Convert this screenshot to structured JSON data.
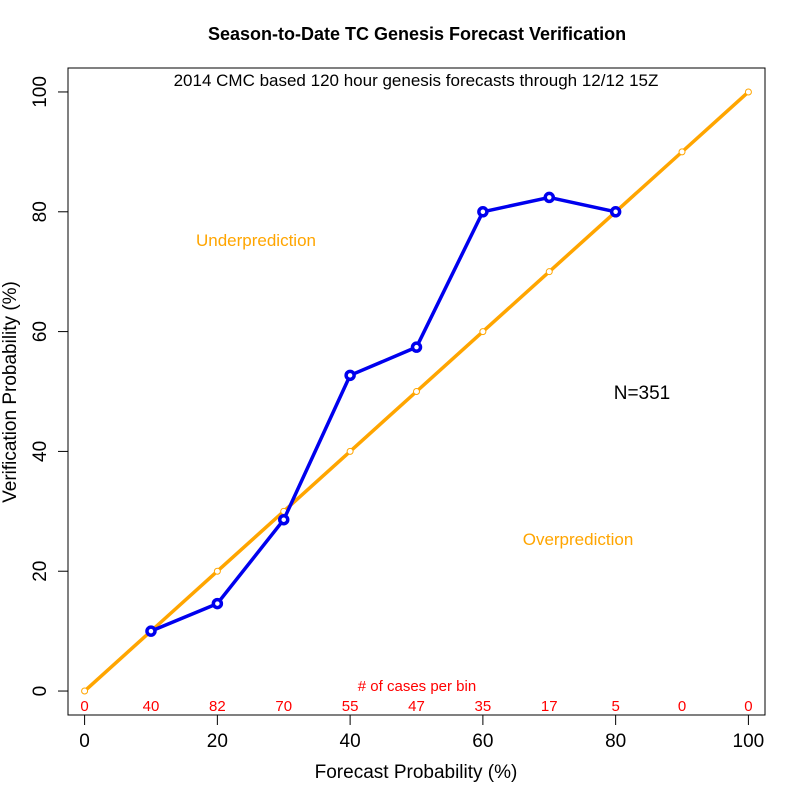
{
  "chart_data": {
    "type": "line",
    "title": "Season-to-Date TC Genesis Forecast Verification",
    "subtitle": "2014 CMC based 120 hour genesis forecasts through 12/12 15Z",
    "xlabel": "Forecast Probability (%)",
    "ylabel": "Verification Probability (%)",
    "xlim": [
      -2.5,
      102.5
    ],
    "ylim": [
      -4,
      104
    ],
    "xticks": [
      0,
      20,
      40,
      60,
      80,
      100
    ],
    "yticks": [
      0,
      20,
      40,
      60,
      80,
      100
    ],
    "series": [
      {
        "color": "#FFA500",
        "x": [
          0,
          10,
          20,
          30,
          40,
          50,
          60,
          70,
          80,
          90,
          100
        ],
        "y": [
          0,
          10,
          20,
          30,
          40,
          50,
          60,
          70,
          80,
          90,
          100
        ]
      },
      {
        "color": "#0000EE",
        "x": [
          10,
          20,
          30,
          40,
          50,
          60,
          70,
          80
        ],
        "y": [
          10,
          14.6,
          28.6,
          52.7,
          57.4,
          80,
          82.4,
          80
        ]
      }
    ],
    "annotations": {
      "underprediction": "Underprediction",
      "overprediction": "Overprediction",
      "n_label": "N=351",
      "cases_label": "# of cases per bin"
    },
    "bin_counts": {
      "x": [
        0,
        10,
        20,
        30,
        40,
        50,
        60,
        70,
        80,
        90,
        100
      ],
      "counts": [
        "0",
        "40",
        "82",
        "70",
        "55",
        "47",
        "35",
        "17",
        "5",
        "0",
        "0"
      ],
      "color": "#FF0000"
    },
    "annotation_color": "#FFA500",
    "grid": false
  }
}
